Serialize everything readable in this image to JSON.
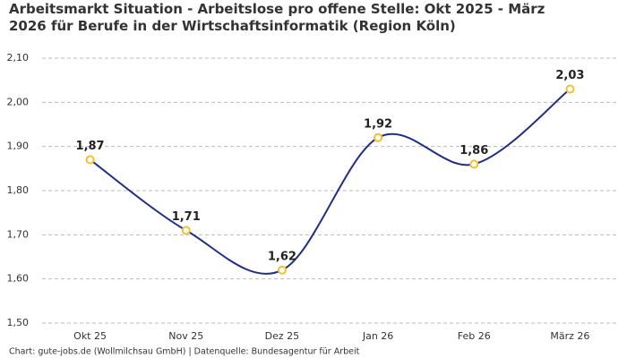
{
  "chart_data": {
    "type": "line",
    "title": "Arbeitsmarkt Situation - Arbeitslose pro offene Stelle: Okt 2025 - März 2026 für Berufe in der Wirtschaftsinformatik (Region Köln)",
    "source": "Chart: gute-jobs.de (Wollmilchsau GmbH) | Datenquelle: Bundesagentur für Arbeit",
    "categories": [
      "Okt 25",
      "Nov 25",
      "Dez 25",
      "Jan 26",
      "Feb 26",
      "März 26"
    ],
    "values": [
      1.87,
      1.71,
      1.62,
      1.92,
      1.86,
      2.03
    ],
    "value_labels": [
      "1,87",
      "1,71",
      "1,62",
      "1,92",
      "1,86",
      "2,03"
    ],
    "color": "#1f2d86",
    "marker_color": "#f2c12e",
    "ylim": [
      1.5,
      2.1
    ],
    "yticks": [
      {
        "value": 1.5,
        "label": "1,50"
      },
      {
        "value": 1.6,
        "label": "1,60"
      },
      {
        "value": 1.7,
        "label": "1,70"
      },
      {
        "value": 1.8,
        "label": "1,80"
      },
      {
        "value": 1.9,
        "label": "1,90"
      },
      {
        "value": 2.0,
        "label": "2,00"
      },
      {
        "value": 2.1,
        "label": "2,10"
      }
    ],
    "grid": true
  }
}
